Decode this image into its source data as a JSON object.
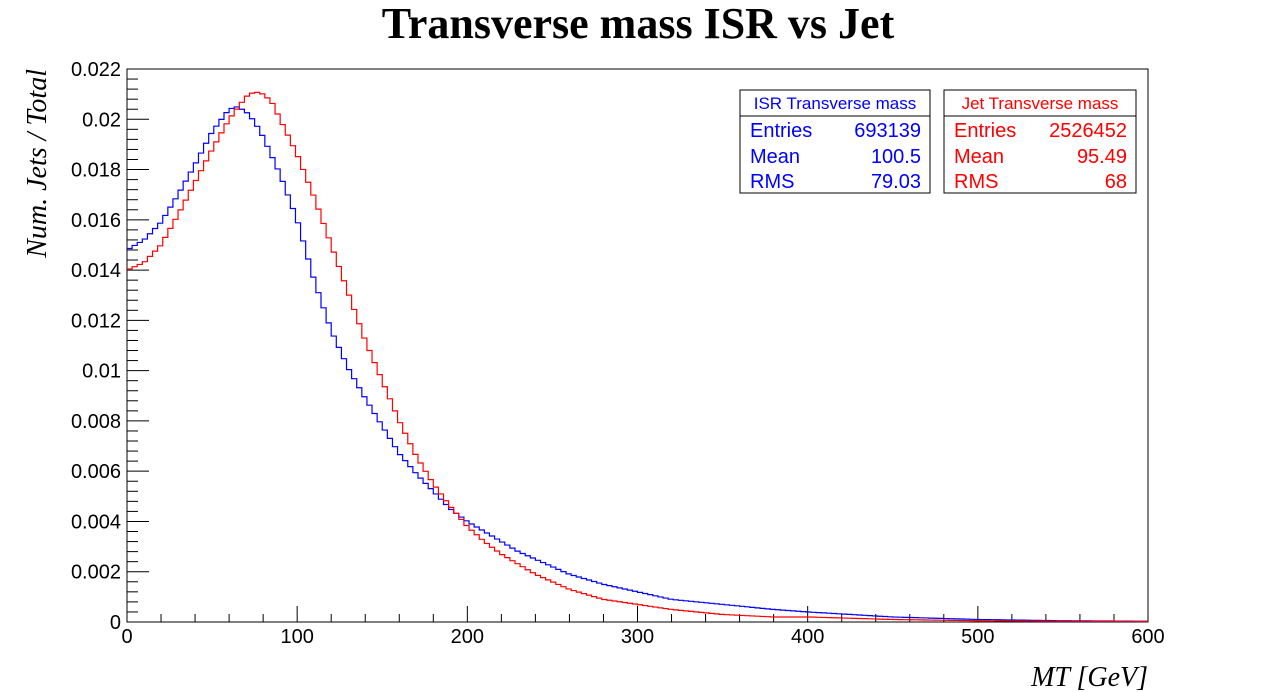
{
  "chart_data": {
    "type": "line",
    "title": "Transverse mass ISR vs Jet",
    "xlabel": "MT [GeV]",
    "ylabel": "Num. Jets / Total",
    "xlim": [
      0,
      600
    ],
    "ylim": [
      0,
      0.022
    ],
    "x_ticks": [
      "0",
      "100",
      "200",
      "300",
      "400",
      "500",
      "600"
    ],
    "y_ticks": [
      "0",
      "0.002",
      "0.004",
      "0.006",
      "0.008",
      "0.01",
      "0.012",
      "0.014",
      "0.016",
      "0.018",
      "0.02",
      "0.022"
    ],
    "grid": false,
    "legend_position": "top-right",
    "series": [
      {
        "name": "ISR Transverse mass",
        "color": "#0000ff",
        "x": [
          0,
          10,
          20,
          30,
          40,
          50,
          60,
          65,
          70,
          75,
          80,
          90,
          100,
          110,
          120,
          130,
          140,
          150,
          160,
          170,
          180,
          190,
          200,
          210,
          220,
          230,
          240,
          250,
          260,
          270,
          280,
          300,
          320,
          350,
          380,
          400,
          450,
          500,
          550,
          600
        ],
        "y": [
          0.0148,
          0.0152,
          0.0159,
          0.017,
          0.0182,
          0.0195,
          0.0204,
          0.0205,
          0.0203,
          0.0199,
          0.0193,
          0.0178,
          0.016,
          0.0136,
          0.0116,
          0.0101,
          0.0089,
          0.0078,
          0.0067,
          0.0059,
          0.0052,
          0.0045,
          0.004,
          0.0036,
          0.0032,
          0.0028,
          0.0025,
          0.0022,
          0.0019,
          0.0017,
          0.0015,
          0.0012,
          0.0009,
          0.0007,
          0.0005,
          0.0004,
          0.0002,
          0.0001,
          5e-05,
          3e-05
        ]
      },
      {
        "name": "Jet Transverse mass",
        "color": "#ff0000",
        "x": [
          0,
          10,
          20,
          30,
          40,
          50,
          60,
          70,
          75,
          80,
          85,
          90,
          100,
          110,
          120,
          130,
          140,
          150,
          160,
          170,
          180,
          190,
          200,
          210,
          220,
          230,
          240,
          250,
          260,
          270,
          280,
          300,
          320,
          350,
          380,
          400,
          450,
          500,
          550,
          600
        ],
        "y": [
          0.014,
          0.0143,
          0.015,
          0.0162,
          0.0175,
          0.0188,
          0.02,
          0.0209,
          0.0211,
          0.021,
          0.0207,
          0.02,
          0.0186,
          0.0169,
          0.015,
          0.0131,
          0.0112,
          0.0096,
          0.008,
          0.0066,
          0.0055,
          0.0046,
          0.0038,
          0.0032,
          0.0027,
          0.0023,
          0.0019,
          0.0016,
          0.0013,
          0.0011,
          0.0009,
          0.0007,
          0.0005,
          0.0003,
          0.0002,
          0.0002,
          0.0001,
          5e-05,
          3e-05,
          2e-05
        ]
      }
    ]
  },
  "stats": [
    {
      "header": "ISR Transverse mass",
      "color": "#0000ff",
      "rows": [
        {
          "label": "Entries",
          "value": "693139"
        },
        {
          "label": "Mean",
          "value": "100.5"
        },
        {
          "label": "RMS",
          "value": "79.03"
        }
      ]
    },
    {
      "header": "Jet Transverse mass",
      "color": "#ff0000",
      "rows": [
        {
          "label": "Entries",
          "value": "2526452"
        },
        {
          "label": "Mean",
          "value": "95.49"
        },
        {
          "label": "RMS",
          "value": "68"
        }
      ]
    }
  ]
}
